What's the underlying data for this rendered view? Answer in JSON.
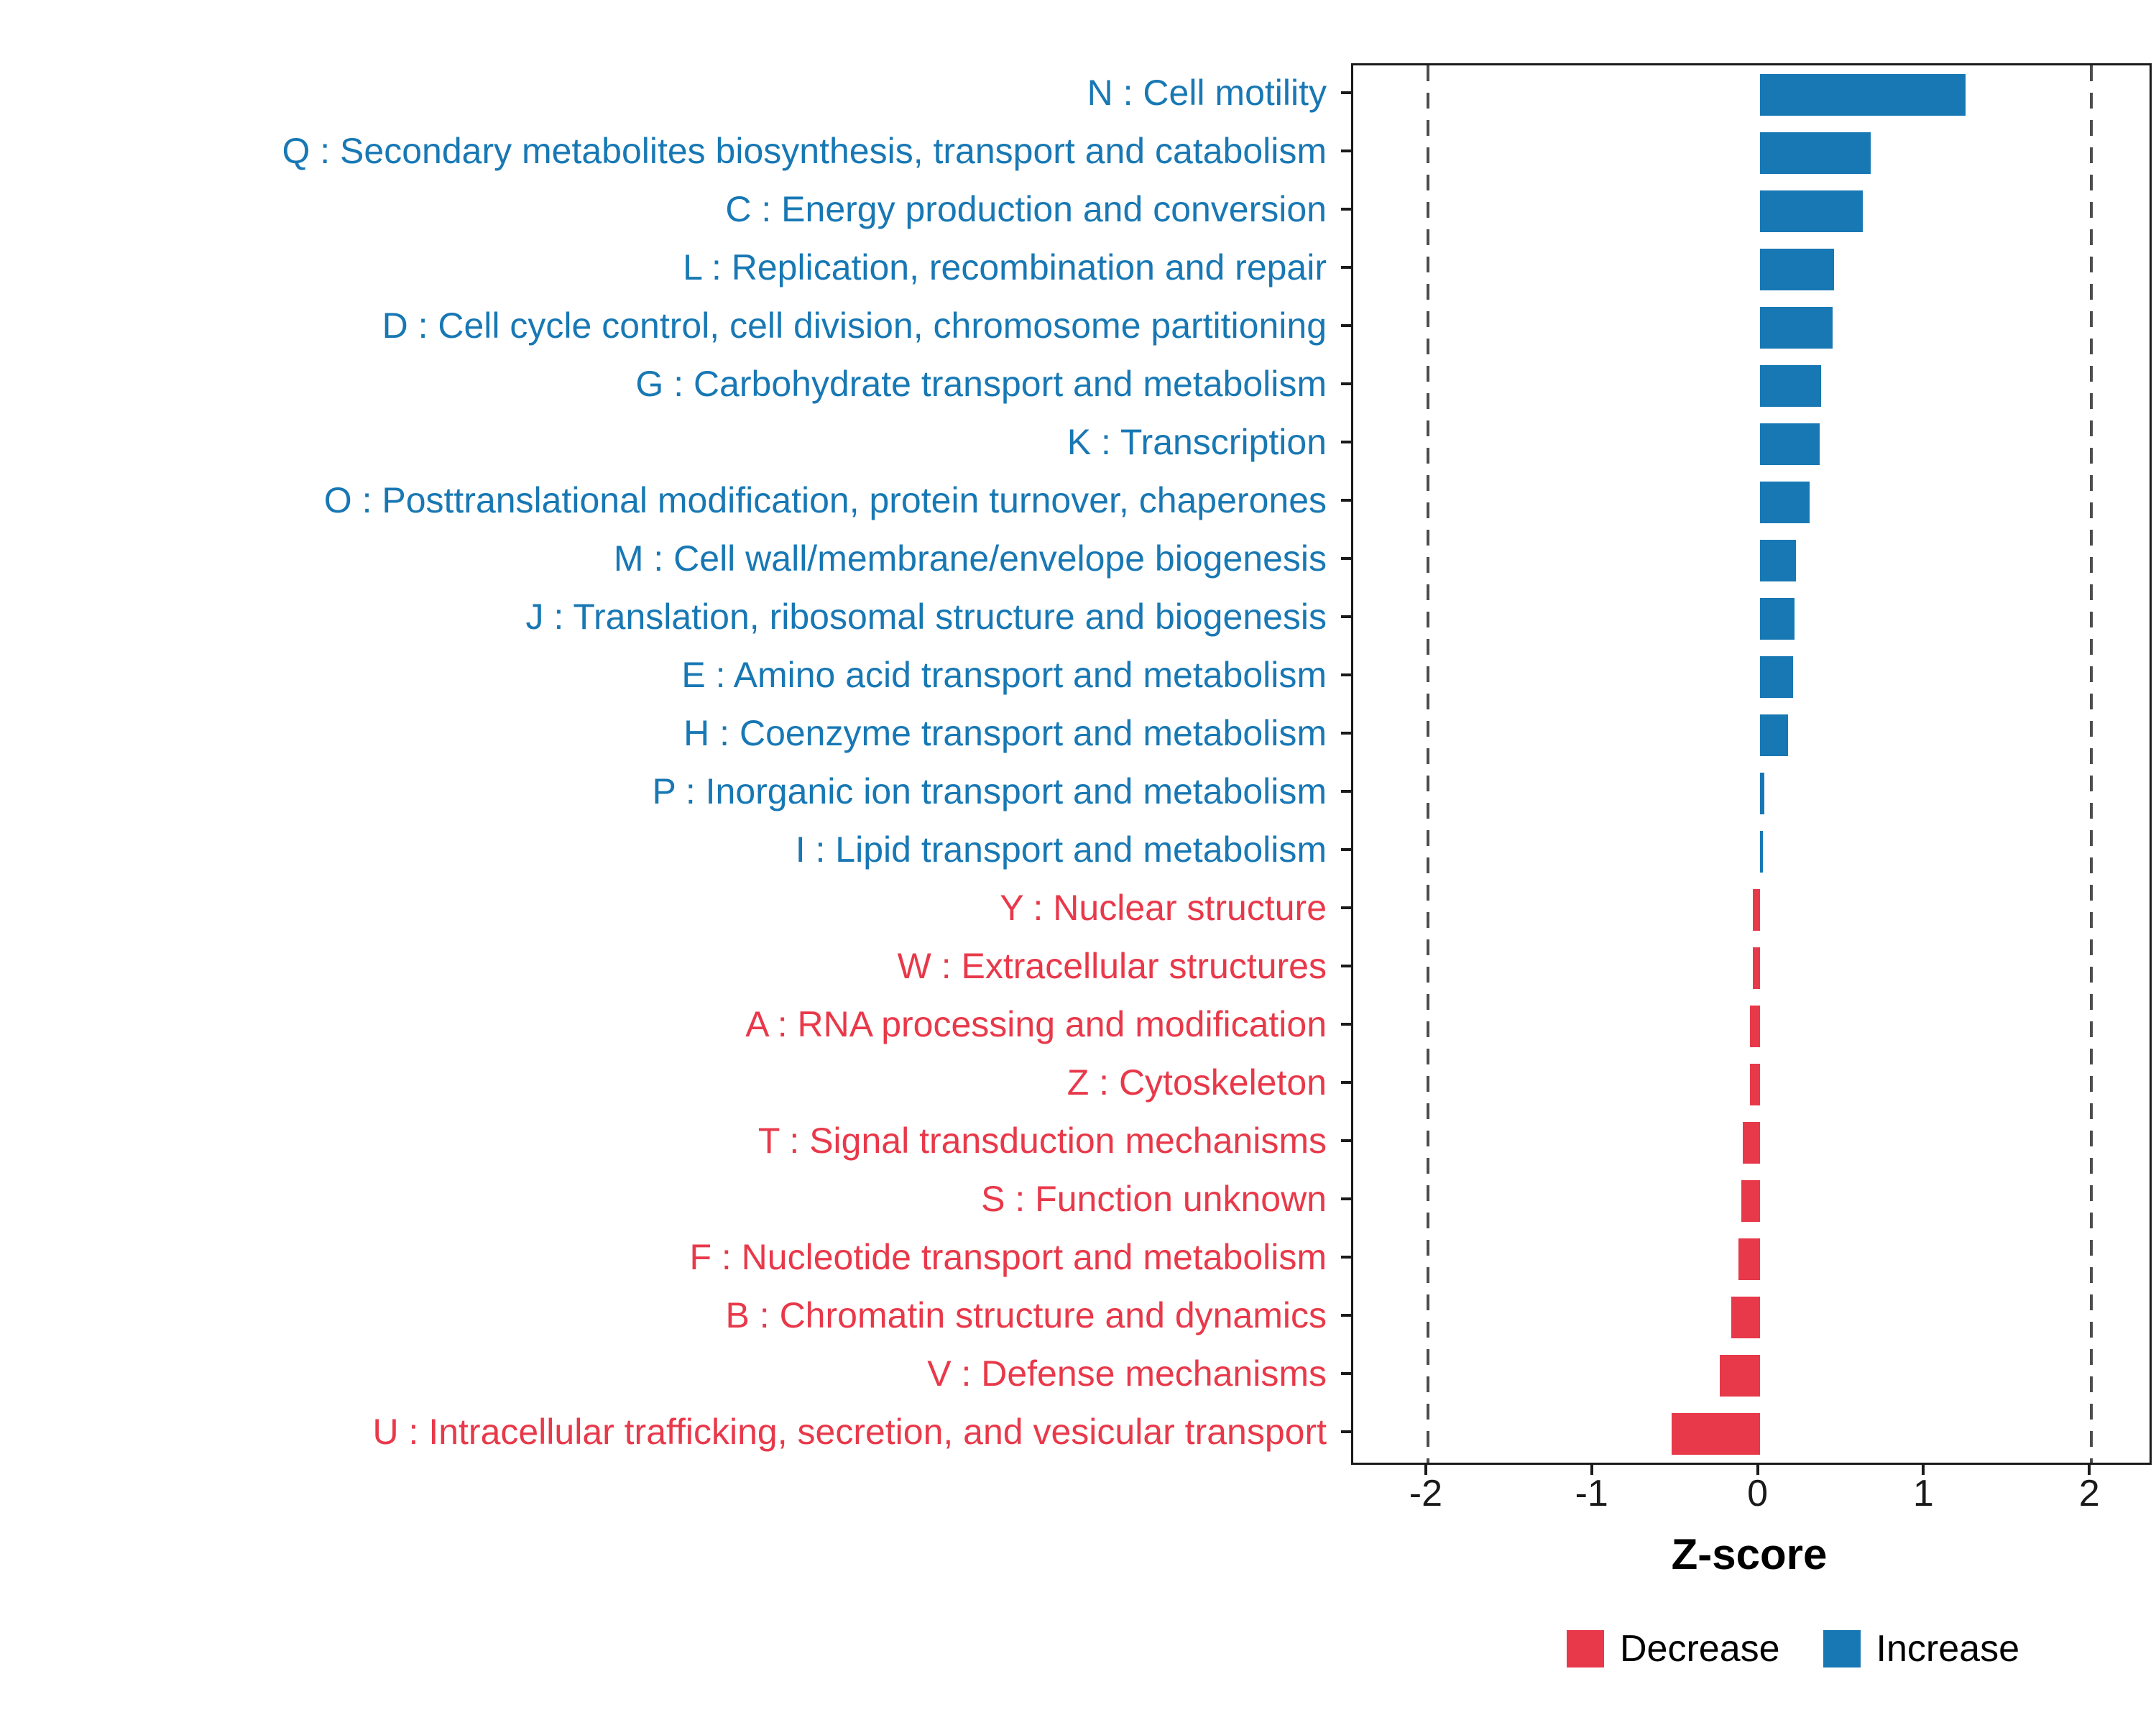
{
  "chart_data": {
    "type": "bar",
    "orientation": "horizontal",
    "title": "",
    "xlabel": "Z-score",
    "ylabel": "",
    "xlim": [
      -2.45,
      2.35
    ],
    "xticks": [
      -2,
      -1,
      0,
      1,
      2
    ],
    "dashed_reference_lines": [
      -2,
      2
    ],
    "grid": false,
    "legend_position": "bottom-right",
    "categories": [
      "N : Cell motility",
      "Q : Secondary metabolites biosynthesis, transport and catabolism",
      "C : Energy production and conversion",
      "L : Replication, recombination and repair",
      "D : Cell cycle control, cell division, chromosome partitioning",
      "G : Carbohydrate transport and metabolism",
      "K : Transcription",
      "O : Posttranslational modification, protein turnover, chaperones",
      "M : Cell wall/membrane/envelope biogenesis",
      "J : Translation, ribosomal structure and biogenesis",
      "E : Amino acid transport and metabolism",
      "H : Coenzyme transport and metabolism",
      "P : Inorganic ion transport and metabolism",
      "I : Lipid transport and metabolism",
      "Y : Nuclear structure",
      "W : Extracellular structures",
      "A : RNA processing and modification",
      "Z : Cytoskeleton",
      "T : Signal transduction mechanisms",
      "S : Function unknown",
      "F : Nucleotide transport and metabolism",
      "B : Chromatin structure and dynamics",
      "V : Defense mechanisms",
      "U : Intracellular trafficking, secretion, and vesicular transport"
    ],
    "values": [
      1.24,
      0.67,
      0.62,
      0.45,
      0.44,
      0.37,
      0.36,
      0.3,
      0.22,
      0.21,
      0.2,
      0.17,
      0.03,
      0.02,
      -0.04,
      -0.04,
      -0.06,
      -0.06,
      -0.1,
      -0.11,
      -0.13,
      -0.17,
      -0.24,
      -0.53
    ],
    "direction": [
      "increase",
      "increase",
      "increase",
      "increase",
      "increase",
      "increase",
      "increase",
      "increase",
      "increase",
      "increase",
      "increase",
      "increase",
      "increase",
      "increase",
      "decrease",
      "decrease",
      "decrease",
      "decrease",
      "decrease",
      "decrease",
      "decrease",
      "decrease",
      "decrease",
      "decrease"
    ]
  },
  "legend": {
    "decrease_label": "Decrease",
    "increase_label": "Increase"
  },
  "colors": {
    "increase": "#1878B4",
    "decrease": "#E8394A",
    "dashed_line": "#4D4D4D",
    "axis": "#1A1A1A"
  }
}
